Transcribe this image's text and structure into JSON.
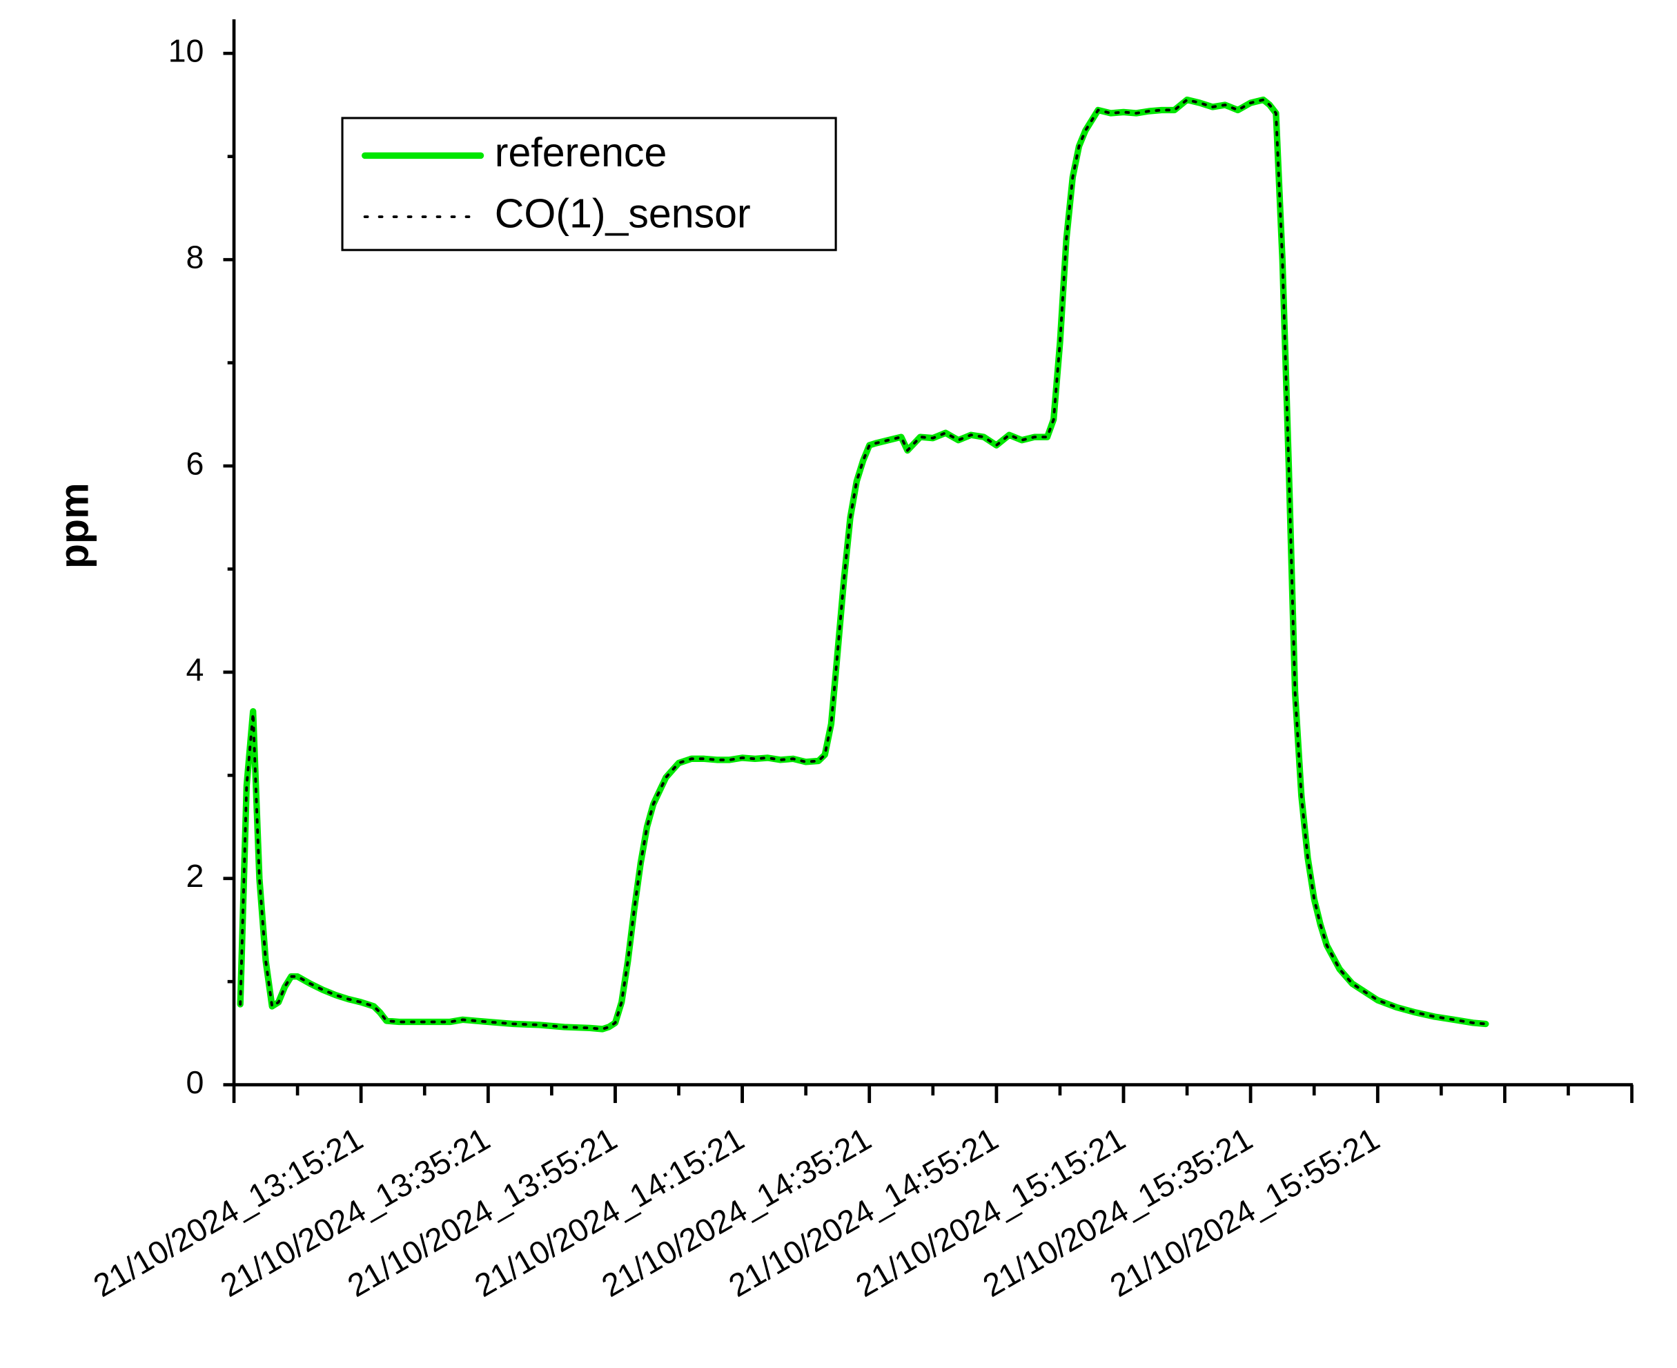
{
  "chart_data": {
    "type": "line",
    "y_label": "ppm",
    "x": [
      "21/10/2024_12:56:21",
      "21/10/2024_12:57:21",
      "21/10/2024_12:58:21",
      "21/10/2024_12:59:21",
      "21/10/2024_13:00:21",
      "21/10/2024_13:01:21",
      "21/10/2024_13:02:21",
      "21/10/2024_13:03:21",
      "21/10/2024_13:04:21",
      "21/10/2024_13:05:21",
      "21/10/2024_13:07:21",
      "21/10/2024_13:09:21",
      "21/10/2024_13:11:21",
      "21/10/2024_13:13:21",
      "21/10/2024_13:15:21",
      "21/10/2024_13:17:21",
      "21/10/2024_13:18:21",
      "21/10/2024_13:19:21",
      "21/10/2024_13:21:21",
      "21/10/2024_13:25:21",
      "21/10/2024_13:29:21",
      "21/10/2024_13:31:21",
      "21/10/2024_13:33:21",
      "21/10/2024_13:35:21",
      "21/10/2024_13:39:21",
      "21/10/2024_13:43:21",
      "21/10/2024_13:47:21",
      "21/10/2024_13:51:21",
      "21/10/2024_13:53:21",
      "21/10/2024_13:54:21",
      "21/10/2024_13:55:21",
      "21/10/2024_13:56:21",
      "21/10/2024_13:57:21",
      "21/10/2024_13:58:21",
      "21/10/2024_13:59:21",
      "21/10/2024_14:00:21",
      "21/10/2024_14:01:21",
      "21/10/2024_14:02:21",
      "21/10/2024_14:03:21",
      "21/10/2024_14:05:21",
      "21/10/2024_14:07:21",
      "21/10/2024_14:09:21",
      "21/10/2024_14:11:21",
      "21/10/2024_14:13:21",
      "21/10/2024_14:15:21",
      "21/10/2024_14:17:21",
      "21/10/2024_14:19:21",
      "21/10/2024_14:21:21",
      "21/10/2024_14:23:21",
      "21/10/2024_14:25:21",
      "21/10/2024_14:27:21",
      "21/10/2024_14:28:21",
      "21/10/2024_14:29:21",
      "21/10/2024_14:30:21",
      "21/10/2024_14:31:21",
      "21/10/2024_14:32:21",
      "21/10/2024_14:33:21",
      "21/10/2024_14:34:21",
      "21/10/2024_14:35:21",
      "21/10/2024_14:36:21",
      "21/10/2024_14:38:21",
      "21/10/2024_14:40:21",
      "21/10/2024_14:41:21",
      "21/10/2024_14:43:21",
      "21/10/2024_14:45:21",
      "21/10/2024_14:47:21",
      "21/10/2024_14:49:21",
      "21/10/2024_14:51:21",
      "21/10/2024_14:53:21",
      "21/10/2024_14:55:21",
      "21/10/2024_14:57:21",
      "21/10/2024_14:59:21",
      "21/10/2024_15:01:21",
      "21/10/2024_15:03:21",
      "21/10/2024_15:04:21",
      "21/10/2024_15:05:21",
      "21/10/2024_15:06:21",
      "21/10/2024_15:07:21",
      "21/10/2024_15:08:21",
      "21/10/2024_15:09:21",
      "21/10/2024_15:11:21",
      "21/10/2024_15:13:21",
      "21/10/2024_15:15:21",
      "21/10/2024_15:17:21",
      "21/10/2024_15:19:21",
      "21/10/2024_15:21:21",
      "21/10/2024_15:23:21",
      "21/10/2024_15:25:21",
      "21/10/2024_15:27:21",
      "21/10/2024_15:29:21",
      "21/10/2024_15:31:21",
      "21/10/2024_15:33:21",
      "21/10/2024_15:35:21",
      "21/10/2024_15:37:21",
      "21/10/2024_15:38:21",
      "21/10/2024_15:39:21",
      "21/10/2024_15:40:21",
      "21/10/2024_15:41:21",
      "21/10/2024_15:42:21",
      "21/10/2024_15:43:21",
      "21/10/2024_15:44:21",
      "21/10/2024_15:45:21",
      "21/10/2024_15:46:21",
      "21/10/2024_15:47:21",
      "21/10/2024_15:49:21",
      "21/10/2024_15:51:21",
      "21/10/2024_15:53:21",
      "21/10/2024_15:55:21",
      "21/10/2024_15:58:21",
      "21/10/2024_16:01:21",
      "21/10/2024_16:04:21",
      "21/10/2024_16:07:21",
      "21/10/2024_16:10:21",
      "21/10/2024_16:12:21"
    ],
    "series": [
      {
        "name": "reference",
        "color": "#00e600",
        "style": "solid",
        "values": [
          0.78,
          2.9,
          3.62,
          2.0,
          1.2,
          0.76,
          0.8,
          0.95,
          1.05,
          1.05,
          0.98,
          0.92,
          0.87,
          0.83,
          0.8,
          0.76,
          0.7,
          0.62,
          0.61,
          0.61,
          0.61,
          0.63,
          0.62,
          0.61,
          0.59,
          0.58,
          0.56,
          0.55,
          0.54,
          0.56,
          0.6,
          0.8,
          1.2,
          1.7,
          2.15,
          2.5,
          2.72,
          2.85,
          2.98,
          3.12,
          3.16,
          3.16,
          3.15,
          3.15,
          3.17,
          3.16,
          3.17,
          3.15,
          3.16,
          3.13,
          3.14,
          3.2,
          3.5,
          4.2,
          4.9,
          5.5,
          5.85,
          6.05,
          6.2,
          6.22,
          6.25,
          6.28,
          6.15,
          6.28,
          6.27,
          6.32,
          6.25,
          6.3,
          6.28,
          6.2,
          6.3,
          6.25,
          6.28,
          6.28,
          6.45,
          7.2,
          8.2,
          8.8,
          9.1,
          9.25,
          9.45,
          9.42,
          9.43,
          9.42,
          9.44,
          9.45,
          9.45,
          9.55,
          9.52,
          9.48,
          9.5,
          9.45,
          9.52,
          9.55,
          9.5,
          9.42,
          8.0,
          6.0,
          3.8,
          2.8,
          2.2,
          1.8,
          1.55,
          1.35,
          1.12,
          0.98,
          0.9,
          0.82,
          0.75,
          0.7,
          0.66,
          0.63,
          0.6,
          0.59
        ]
      },
      {
        "name": "CO(1)_sensor",
        "color": "#000000",
        "style": "dotted",
        "values": [
          0.78,
          2.9,
          3.6,
          2.0,
          1.2,
          0.76,
          0.8,
          0.95,
          1.05,
          1.05,
          0.98,
          0.92,
          0.87,
          0.83,
          0.8,
          0.76,
          0.7,
          0.62,
          0.61,
          0.61,
          0.61,
          0.63,
          0.62,
          0.61,
          0.59,
          0.58,
          0.56,
          0.55,
          0.54,
          0.56,
          0.6,
          0.8,
          1.2,
          1.7,
          2.15,
          2.5,
          2.72,
          2.85,
          2.98,
          3.12,
          3.16,
          3.16,
          3.15,
          3.15,
          3.17,
          3.16,
          3.17,
          3.15,
          3.16,
          3.13,
          3.14,
          3.2,
          3.5,
          4.2,
          4.9,
          5.5,
          5.85,
          6.05,
          6.2,
          6.22,
          6.25,
          6.28,
          6.15,
          6.28,
          6.27,
          6.32,
          6.25,
          6.3,
          6.28,
          6.2,
          6.3,
          6.25,
          6.28,
          6.28,
          6.45,
          7.2,
          8.2,
          8.8,
          9.1,
          9.25,
          9.45,
          9.42,
          9.43,
          9.42,
          9.44,
          9.45,
          9.45,
          9.55,
          9.52,
          9.48,
          9.5,
          9.45,
          9.52,
          9.55,
          9.5,
          9.42,
          8.0,
          6.0,
          3.8,
          2.8,
          2.2,
          1.8,
          1.55,
          1.35,
          1.12,
          0.98,
          0.9,
          0.82,
          0.75,
          0.7,
          0.66,
          0.63,
          0.6,
          0.59
        ]
      }
    ],
    "xlim": [
      "21/10/2024_12:55:21",
      "21/10/2024_16:35:21"
    ],
    "xticks": [
      "21/10/2024_13:15:21",
      "21/10/2024_13:35:21",
      "21/10/2024_13:55:21",
      "21/10/2024_14:15:21",
      "21/10/2024_14:35:21",
      "21/10/2024_14:55:21",
      "21/10/2024_15:15:21",
      "21/10/2024_15:35:21",
      "21/10/2024_15:55:21"
    ],
    "ylim": [
      0,
      10.33
    ],
    "yticks": [
      0,
      2,
      4,
      6,
      8,
      10
    ],
    "grid": false,
    "legend": "upper left"
  }
}
